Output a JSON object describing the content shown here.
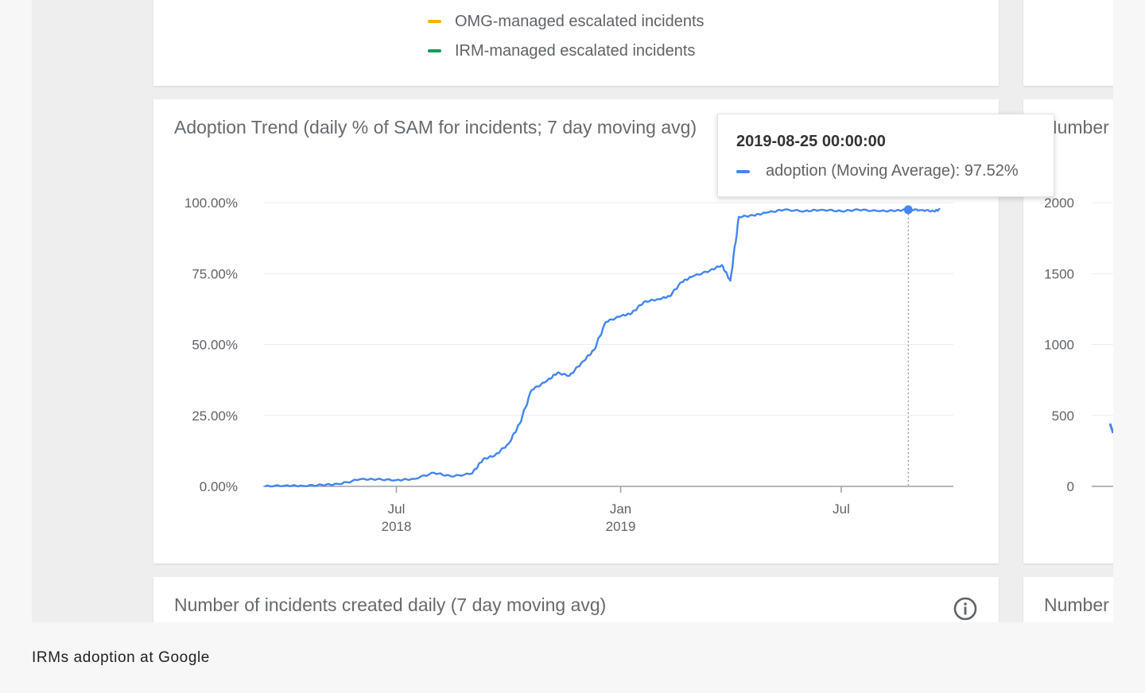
{
  "legend": {
    "items": [
      {
        "label": "OMG-managed escalated incidents",
        "color": "#f4b400"
      },
      {
        "label": "IRM-managed escalated incidents",
        "color": "#0f9d58"
      }
    ]
  },
  "adoption_card": {
    "title": "Adoption Trend (daily % of SAM for incidents; 7 day moving avg)"
  },
  "tooltip": {
    "date": "2019-08-25 00:00:00",
    "series_label": "adoption (Moving Average): 97.52%",
    "color": "#4285f4"
  },
  "right_card": {
    "title": "Number",
    "y_ticks": [
      "2000",
      "1500",
      "1000",
      "500",
      "0"
    ]
  },
  "incidents_card": {
    "title": "Number of incidents created daily (7 day moving avg)"
  },
  "bottom_right_card": {
    "title": "Number"
  },
  "caption": "IRMs adoption at Google",
  "chart_data": {
    "type": "line",
    "title": "Adoption Trend (daily % of SAM for incidents; 7 day moving avg)",
    "series": [
      {
        "name": "adoption (Moving Average)",
        "color": "#4285f4",
        "points": [
          [
            "2018-03-15",
            0.0
          ],
          [
            "2018-04-01",
            0.3
          ],
          [
            "2018-04-15",
            0.2
          ],
          [
            "2018-05-01",
            0.5
          ],
          [
            "2018-05-15",
            0.8
          ],
          [
            "2018-06-01",
            2.5
          ],
          [
            "2018-06-15",
            2.5
          ],
          [
            "2018-07-01",
            2.2
          ],
          [
            "2018-07-15",
            2.6
          ],
          [
            "2018-08-01",
            4.8
          ],
          [
            "2018-08-15",
            3.5
          ],
          [
            "2018-09-01",
            4.5
          ],
          [
            "2018-09-10",
            9.5
          ],
          [
            "2018-09-20",
            11.0
          ],
          [
            "2018-10-01",
            15.0
          ],
          [
            "2018-10-10",
            22.0
          ],
          [
            "2018-10-20",
            34.0
          ],
          [
            "2018-11-01",
            37.0
          ],
          [
            "2018-11-10",
            40.0
          ],
          [
            "2018-11-20",
            39.0
          ],
          [
            "2018-12-01",
            44.0
          ],
          [
            "2018-12-10",
            48.0
          ],
          [
            "2018-12-20",
            58.0
          ],
          [
            "2019-01-01",
            60.0
          ],
          [
            "2019-01-10",
            61.0
          ],
          [
            "2019-01-20",
            65.0
          ],
          [
            "2019-02-01",
            66.0
          ],
          [
            "2019-02-10",
            67.0
          ],
          [
            "2019-02-20",
            72.0
          ],
          [
            "2019-03-01",
            74.0
          ],
          [
            "2019-03-15",
            76.0
          ],
          [
            "2019-03-25",
            78.0
          ],
          [
            "2019-04-01",
            72.5
          ],
          [
            "2019-04-08",
            95.0
          ],
          [
            "2019-04-20",
            95.5
          ],
          [
            "2019-05-01",
            96.5
          ],
          [
            "2019-05-15",
            97.5
          ],
          [
            "2019-06-01",
            97.0
          ],
          [
            "2019-06-15",
            97.5
          ],
          [
            "2019-07-01",
            97.0
          ],
          [
            "2019-07-15",
            97.5
          ],
          [
            "2019-08-01",
            97.0
          ],
          [
            "2019-08-15",
            97.2
          ],
          [
            "2019-08-25",
            97.52
          ],
          [
            "2019-09-05",
            97.4
          ],
          [
            "2019-09-15",
            97.0
          ],
          [
            "2019-09-20",
            97.6
          ]
        ]
      }
    ],
    "highlight": {
      "date": "2019-08-25",
      "value": 97.52
    },
    "y_axis": {
      "min": 0,
      "max": 100,
      "tick_labels": [
        "0.00%",
        "25.00%",
        "50.00%",
        "75.00%",
        "100.00%"
      ],
      "tick_values": [
        0,
        25,
        50,
        75,
        100
      ]
    },
    "x_axis": {
      "min": "2018-03-15",
      "max": "2019-10-01",
      "ticks": [
        {
          "date": "2018-07-01",
          "label": "Jul",
          "sublabel": "2018"
        },
        {
          "date": "2019-01-01",
          "label": "Jan",
          "sublabel": "2019"
        },
        {
          "date": "2019-07-01",
          "label": "Jul",
          "sublabel": ""
        }
      ]
    },
    "grid": true,
    "legend": "none"
  }
}
